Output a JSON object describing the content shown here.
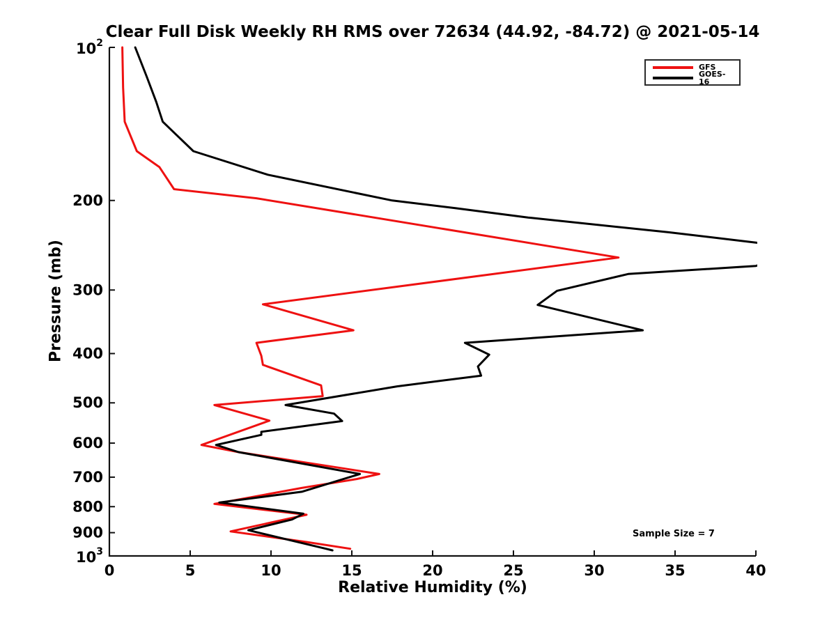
{
  "chart_data": {
    "type": "line",
    "title": "Clear Full Disk Weekly RH RMS over 72634 (44.92, -84.72) @ 2021-05-14",
    "xlabel": "Relative Humidity (%)",
    "ylabel": "Pressure (mb)",
    "xlim": [
      0,
      40
    ],
    "ylim_mb": [
      100,
      1000
    ],
    "y_scale": "log10-inverted",
    "grid": false,
    "xticks": [
      0,
      5,
      10,
      15,
      20,
      25,
      30,
      35,
      40
    ],
    "yticks": [
      {
        "p": 100,
        "label": "10^2"
      },
      {
        "p": 200,
        "label": "200"
      },
      {
        "p": 300,
        "label": "300"
      },
      {
        "p": 400,
        "label": "400"
      },
      {
        "p": 500,
        "label": "500"
      },
      {
        "p": 600,
        "label": "600"
      },
      {
        "p": 700,
        "label": "700"
      },
      {
        "p": 800,
        "label": "800"
      },
      {
        "p": 900,
        "label": "900"
      },
      {
        "p": 1000,
        "label": "10^3"
      }
    ],
    "legend": {
      "position": "upper right",
      "entries": [
        {
          "label": "GFS",
          "color": "#ee1111"
        },
        {
          "label": "GOES-16",
          "color": "#000000"
        }
      ]
    },
    "annotation": {
      "text": "Sample Size = 7",
      "position": "lower right"
    },
    "series": [
      {
        "name": "GFS",
        "color": "#ee1111",
        "clipped_above_xmax": false,
        "points_mb_rh": [
          [
            100,
            0.8
          ],
          [
            120,
            0.85
          ],
          [
            140,
            0.95
          ],
          [
            160,
            1.7
          ],
          [
            172,
            3.1
          ],
          [
            190,
            4.0
          ],
          [
            198,
            9.1
          ],
          [
            259,
            31.5
          ],
          [
            320,
            9.5
          ],
          [
            360,
            15.1
          ],
          [
            381,
            9.1
          ],
          [
            404,
            9.4
          ],
          [
            421,
            9.5
          ],
          [
            462,
            13.1
          ],
          [
            485,
            13.2
          ],
          [
            505,
            6.5
          ],
          [
            542,
            9.9
          ],
          [
            605,
            5.7
          ],
          [
            625,
            8.0
          ],
          [
            690,
            16.7
          ],
          [
            706,
            15.3
          ],
          [
            735,
            11.9
          ],
          [
            790,
            6.5
          ],
          [
            830,
            12.2
          ],
          [
            895,
            7.5
          ],
          [
            939,
            12.2
          ],
          [
            968,
            14.9
          ]
        ]
      },
      {
        "name": "GOES-16",
        "color": "#000000",
        "clipped_above_xmax": true,
        "points_mb_rh": [
          [
            100,
            1.6
          ],
          [
            114,
            2.3
          ],
          [
            128,
            2.9
          ],
          [
            140,
            3.3
          ],
          [
            160,
            5.2
          ],
          [
            178,
            9.8
          ],
          [
            200,
            17.5
          ],
          [
            207,
            21.4
          ],
          [
            216,
            25.9
          ],
          [
            231,
            34.6
          ],
          [
            242,
            40.0
          ],
          [
            250,
            43.0
          ],
          [
            269,
            40.0
          ],
          [
            279,
            32.1
          ],
          [
            301,
            27.7
          ],
          [
            321,
            26.5
          ],
          [
            360,
            33.0
          ],
          [
            381,
            22.0
          ],
          [
            402,
            23.5
          ],
          [
            424,
            22.8
          ],
          [
            442,
            23.0
          ],
          [
            464,
            17.8
          ],
          [
            505,
            10.9
          ],
          [
            525,
            13.9
          ],
          [
            543,
            14.4
          ],
          [
            570,
            9.4
          ],
          [
            578,
            9.4
          ],
          [
            605,
            6.6
          ],
          [
            625,
            8.0
          ],
          [
            690,
            15.5
          ],
          [
            748,
            11.9
          ],
          [
            785,
            6.8
          ],
          [
            826,
            12.0
          ],
          [
            848,
            11.3
          ],
          [
            890,
            8.6
          ],
          [
            968,
            13.4
          ],
          [
            975,
            13.8
          ]
        ]
      }
    ]
  }
}
